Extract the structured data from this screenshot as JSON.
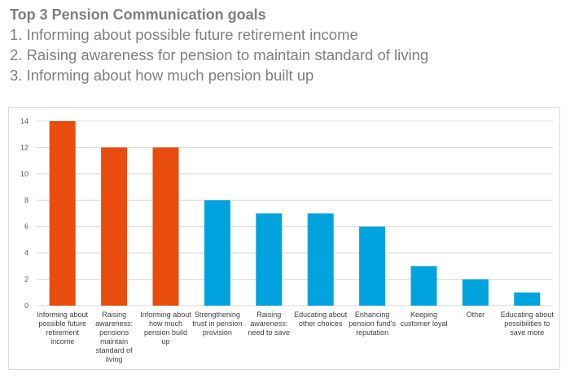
{
  "heading": {
    "title": "Top 3 Pension Communication goals",
    "goals": [
      "1. Informing about possible future retirement income",
      "2. Raising awareness for pension to maintain standard of living",
      "3. Informing about how much pension built up"
    ]
  },
  "chart_data": {
    "type": "bar",
    "title": "",
    "xlabel": "",
    "ylabel": "",
    "ylim": [
      0,
      14
    ],
    "yticks": [
      0,
      2,
      4,
      6,
      8,
      10,
      12,
      14
    ],
    "grid": true,
    "categories": [
      [
        "Informing about",
        "possible future",
        "retirement",
        "income"
      ],
      [
        "Raising",
        "awareness:",
        "pensions",
        "maintain",
        "standard of",
        "living"
      ],
      [
        "Informing about",
        "how much",
        "pension build",
        "up"
      ],
      [
        "Strengthening",
        "trust in pension",
        "provision"
      ],
      [
        "Raising",
        "awareness:",
        "need to save"
      ],
      [
        "Educating about",
        "other choices"
      ],
      [
        "Enhancing",
        "pension fund's",
        "reputation"
      ],
      [
        "Keeping",
        "customer loyal"
      ],
      [
        "Other"
      ],
      [
        "Educating about",
        "possibilities to",
        "save more"
      ]
    ],
    "values": [
      14,
      12,
      12,
      8,
      7,
      7,
      6,
      3,
      2,
      1
    ],
    "colors": {
      "top3": "#e84c0e",
      "other": "#00a3dd",
      "grid": "#d9d9d9"
    },
    "top_n_highlighted": 3
  }
}
